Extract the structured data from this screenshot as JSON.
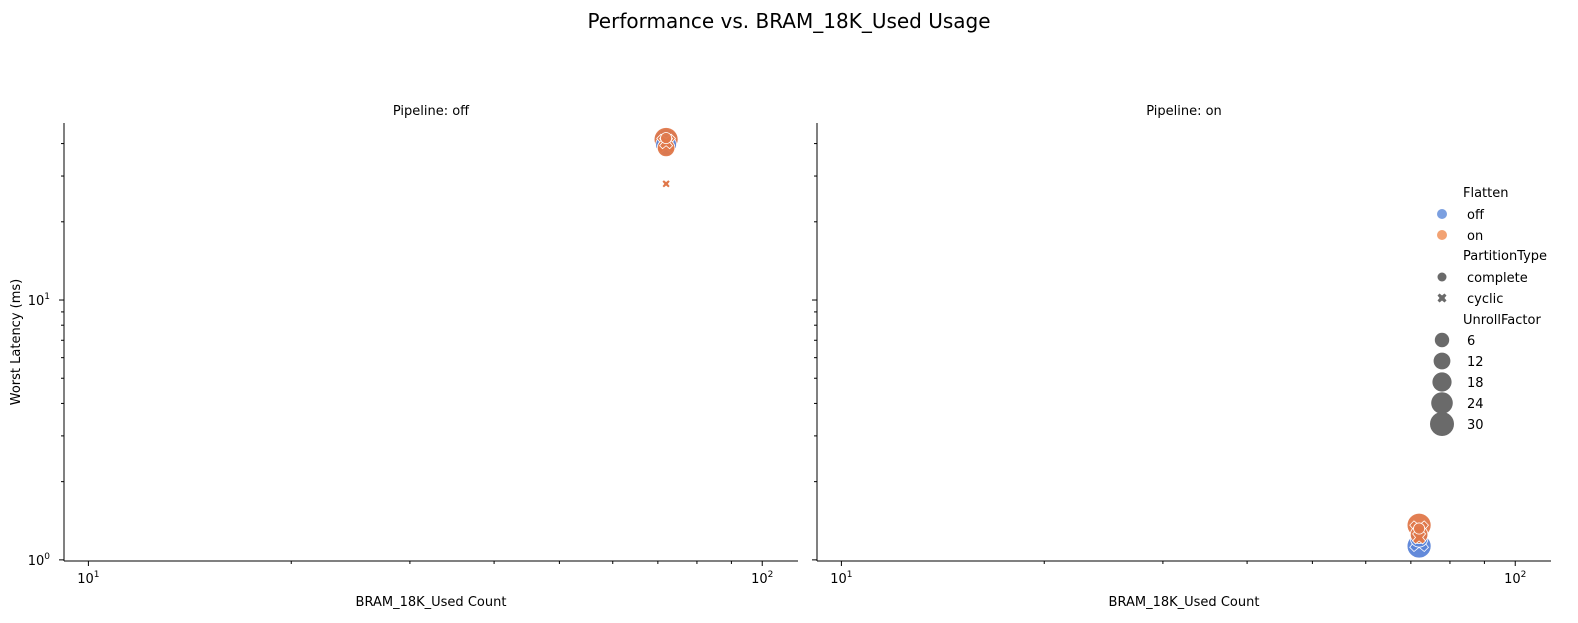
{
  "figure": {
    "title": "Performance vs. BRAM_18K_Used Usage"
  },
  "chart_data": [
    {
      "type": "scatter",
      "title": "Pipeline: off",
      "xlabel": "BRAM_18K_Used Count",
      "ylabel": "Worst Latency (ms)",
      "x_scale": "log",
      "y_scale": "log",
      "xlim": [
        9.2,
        113
      ],
      "ylim": [
        0.99,
        48
      ],
      "x_ticks": [
        {
          "value": 10,
          "label": "10^1"
        },
        {
          "value": 100,
          "label": "10^2"
        }
      ],
      "y_ticks": [
        {
          "value": 1,
          "label": "10^0"
        },
        {
          "value": 10,
          "label": "10^1"
        }
      ],
      "grid": false,
      "points": [
        {
          "x": 72,
          "y": 41,
          "flatten": "off",
          "partition": "complete",
          "unroll": 30
        },
        {
          "x": 72,
          "y": 39.5,
          "flatten": "off",
          "partition": "complete",
          "unroll": 24
        },
        {
          "x": 72,
          "y": 41.5,
          "flatten": "on",
          "partition": "complete",
          "unroll": 30
        },
        {
          "x": 72,
          "y": 40,
          "flatten": "on",
          "partition": "cyclic",
          "unroll": 24
        },
        {
          "x": 72,
          "y": 38.5,
          "flatten": "on",
          "partition": "complete",
          "unroll": 18
        },
        {
          "x": 72,
          "y": 40.5,
          "flatten": "on",
          "partition": "cyclic",
          "unroll": 12
        },
        {
          "x": 72,
          "y": 42,
          "flatten": "on",
          "partition": "complete",
          "unroll": 6
        },
        {
          "x": 72,
          "y": 28,
          "flatten": "on",
          "partition": "cyclic",
          "unroll": 2
        }
      ]
    },
    {
      "type": "scatter",
      "title": "Pipeline: on",
      "xlabel": "BRAM_18K_Used Count",
      "ylabel": "",
      "x_scale": "log",
      "y_scale": "log",
      "xlim": [
        9.2,
        113
      ],
      "ylim": [
        0.99,
        48
      ],
      "x_ticks": [
        {
          "value": 10,
          "label": "10^1"
        },
        {
          "value": 100,
          "label": "10^2"
        }
      ],
      "y_ticks": [
        {
          "value": 1,
          "label": ""
        },
        {
          "value": 10,
          "label": ""
        }
      ],
      "grid": false,
      "points": [
        {
          "x": 72,
          "y": 1.13,
          "flatten": "off",
          "partition": "complete",
          "unroll": 30
        },
        {
          "x": 72,
          "y": 1.17,
          "flatten": "off",
          "partition": "cyclic",
          "unroll": 24
        },
        {
          "x": 72,
          "y": 1.21,
          "flatten": "off",
          "partition": "complete",
          "unroll": 18
        },
        {
          "x": 72,
          "y": 1.36,
          "flatten": "on",
          "partition": "complete",
          "unroll": 30
        },
        {
          "x": 72,
          "y": 1.3,
          "flatten": "on",
          "partition": "cyclic",
          "unroll": 24
        },
        {
          "x": 72,
          "y": 1.25,
          "flatten": "on",
          "partition": "complete",
          "unroll": 18
        },
        {
          "x": 72,
          "y": 1.22,
          "flatten": "on",
          "partition": "cyclic",
          "unroll": 12
        },
        {
          "x": 72,
          "y": 1.32,
          "flatten": "on",
          "partition": "complete",
          "unroll": 6
        }
      ]
    }
  ],
  "legend": {
    "placement": "right",
    "flatten": {
      "title": "Flatten",
      "items": [
        {
          "label": "off",
          "color": "#7b9fe0"
        },
        {
          "label": "on",
          "color": "#f2a273"
        }
      ]
    },
    "partition": {
      "title": "PartitionType",
      "items": [
        {
          "label": "complete",
          "marker": "circle"
        },
        {
          "label": "cyclic",
          "marker": "x"
        }
      ]
    },
    "unroll": {
      "title": "UnrollFactor",
      "items": [
        {
          "label": "6",
          "value": 6
        },
        {
          "label": "12",
          "value": 12
        },
        {
          "label": "18",
          "value": 18
        },
        {
          "label": "24",
          "value": 24
        },
        {
          "label": "30",
          "value": 30
        }
      ]
    }
  },
  "colors": {
    "flatten_off_point": "#5b84d8",
    "flatten_on_point": "#e0784a",
    "legend_marker_gray": "#6a6a6a",
    "axis": "#000000"
  }
}
